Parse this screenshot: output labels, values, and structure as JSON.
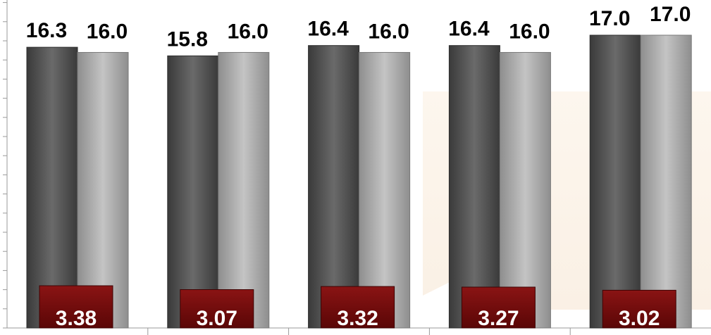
{
  "chart_data": {
    "type": "bar",
    "categories": [
      "",
      "",
      "",
      "",
      ""
    ],
    "series": [
      {
        "values": [
          16.3,
          15.8,
          16.4,
          16.4,
          17.0
        ],
        "color": "#5f5f5f"
      },
      {
        "values": [
          16.0,
          16.0,
          16.0,
          16.0,
          17.0
        ],
        "color": "#b3b3b3"
      },
      {
        "values": [
          3.38,
          3.07,
          3.32,
          3.27,
          3.02
        ],
        "color": "#7a1010"
      }
    ],
    "value_labels": {
      "series_1": [
        "16.3",
        "15.8",
        "16.4",
        "16.4",
        "17.0"
      ],
      "series_2": [
        "16.0",
        "16.0",
        "16.0",
        "16.0",
        "17.0"
      ],
      "series_3": [
        "3.38",
        "3.07",
        "3.32",
        "3.27",
        "3.02"
      ]
    },
    "title": "",
    "xlabel": "",
    "ylabel": "",
    "ylim": [
      0,
      17.5
    ],
    "grid": false,
    "legend": "none"
  }
}
